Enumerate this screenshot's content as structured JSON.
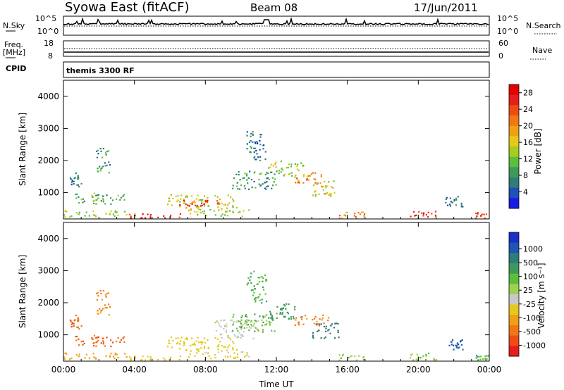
{
  "header": {
    "site": "Syowa East (fitACF)",
    "beam": "Beam 08",
    "date": "17/Jun/2011"
  },
  "strips": {
    "nsky": {
      "label": "N.Sky",
      "ticks": [
        "10^5",
        "10^0"
      ]
    },
    "nsearch": {
      "label": "N.Search",
      "ticks": [
        "10^5",
        "10^0"
      ]
    },
    "freq": {
      "label_line1": "Freq.",
      "label_line2": "[MHz]",
      "ticks": [
        "18",
        "8"
      ]
    },
    "nave": {
      "label": "Nave",
      "ticks": [
        "60",
        "0"
      ]
    },
    "cpid": {
      "label": "CPID",
      "value": "themis 3300 RF"
    }
  },
  "chart_data": [
    {
      "type": "heatmap",
      "quantity": "Power",
      "xlabel": "",
      "ylabel": "Slant Range [km]",
      "x_ticks": [
        "00:00",
        "04:00",
        "08:00",
        "12:00",
        "16:00",
        "20:00",
        "00:00"
      ],
      "y_ticks": [
        "1000",
        "2000",
        "3000",
        "4000"
      ],
      "xlim_hours": [
        0,
        24
      ],
      "ylim_km": [
        180,
        4500
      ],
      "colorbar": {
        "label": "Power [dB]",
        "ticks": [
          "4",
          "8",
          "12",
          "16",
          "20",
          "24",
          "28"
        ],
        "range": [
          0,
          30
        ],
        "colors": [
          "#1a1ae6",
          "#1f4fb8",
          "#2f7d78",
          "#3e9a5a",
          "#5cbf3c",
          "#a8cc1e",
          "#e6c81a",
          "#f0a014",
          "#f07814",
          "#f04b14",
          "#e61e1e",
          "#e60000"
        ]
      },
      "regions": [
        {
          "t0": 0.2,
          "t1": 1.0,
          "r0": 1200,
          "r1": 1700,
          "value": 6
        },
        {
          "t0": 0.5,
          "t1": 3.5,
          "r0": 650,
          "r1": 1000,
          "value": 10
        },
        {
          "t0": 1.8,
          "t1": 2.6,
          "r0": 1600,
          "r1": 2400,
          "value": 8
        },
        {
          "t0": 0.0,
          "t1": 4.0,
          "r0": 250,
          "r1": 450,
          "value": 14
        },
        {
          "t0": 3.6,
          "t1": 6.8,
          "r0": 200,
          "r1": 380,
          "value": 26
        },
        {
          "t0": 5.8,
          "t1": 9.8,
          "r0": 500,
          "r1": 950,
          "value": 16
        },
        {
          "t0": 6.2,
          "t1": 8.8,
          "r0": 600,
          "r1": 780,
          "value": 26
        },
        {
          "t0": 7.0,
          "t1": 10.5,
          "r0": 280,
          "r1": 500,
          "value": 14
        },
        {
          "t0": 9.5,
          "t1": 12.0,
          "r0": 1100,
          "r1": 1700,
          "value": 8
        },
        {
          "t0": 10.3,
          "t1": 11.4,
          "r0": 2000,
          "r1": 3000,
          "value": 6
        },
        {
          "t0": 11.5,
          "t1": 13.5,
          "r0": 1500,
          "r1": 2000,
          "value": 14
        },
        {
          "t0": 13.0,
          "t1": 15.0,
          "r0": 1300,
          "r1": 1650,
          "value": 20
        },
        {
          "t0": 14.0,
          "t1": 15.5,
          "r0": 900,
          "r1": 1400,
          "value": 16
        },
        {
          "t0": 15.5,
          "t1": 17.0,
          "r0": 180,
          "r1": 420,
          "value": 20
        },
        {
          "t0": 19.5,
          "t1": 21.0,
          "r0": 180,
          "r1": 450,
          "value": 26
        },
        {
          "t0": 23.2,
          "t1": 24.0,
          "r0": 180,
          "r1": 400,
          "value": 26
        },
        {
          "t0": 21.5,
          "t1": 22.5,
          "r0": 550,
          "r1": 900,
          "value": 6
        }
      ]
    },
    {
      "type": "heatmap",
      "quantity": "Velocity",
      "xlabel": "Time UT",
      "ylabel": "Slant Range [km]",
      "x_ticks": [
        "00:00",
        "04:00",
        "08:00",
        "12:00",
        "16:00",
        "20:00",
        "00:00"
      ],
      "y_ticks": [
        "1000",
        "2000",
        "3000",
        "4000"
      ],
      "xlim_hours": [
        0,
        24
      ],
      "ylim_km": [
        180,
        4500
      ],
      "colorbar": {
        "label": "Velocity [m s⁻¹]",
        "ticks": [
          "1000",
          "500",
          "100",
          "25",
          "-25",
          "-100",
          "-500",
          "-1000"
        ],
        "colors": [
          "#1a2fc8",
          "#1f55b4",
          "#2f7d78",
          "#3e9a5a",
          "#5cbf3c",
          "#a0d050",
          "#c8c8c8",
          "#e6c81a",
          "#f0a014",
          "#f07814",
          "#f04b14",
          "#e61e1e"
        ]
      },
      "regions": [
        {
          "t0": 0.2,
          "t1": 1.0,
          "r0": 1200,
          "r1": 1700,
          "value": -500
        },
        {
          "t0": 0.5,
          "t1": 3.5,
          "r0": 650,
          "r1": 1000,
          "value": -500
        },
        {
          "t0": 1.8,
          "t1": 2.6,
          "r0": 1600,
          "r1": 2400,
          "value": -300
        },
        {
          "t0": 0.0,
          "t1": 4.0,
          "r0": 250,
          "r1": 450,
          "value": -150
        },
        {
          "t0": 3.6,
          "t1": 6.8,
          "r0": 200,
          "r1": 380,
          "value": -60
        },
        {
          "t0": 5.8,
          "t1": 9.8,
          "r0": 500,
          "r1": 950,
          "value": -60
        },
        {
          "t0": 8.5,
          "t1": 11.0,
          "r0": 900,
          "r1": 1500,
          "value": 0
        },
        {
          "t0": 7.0,
          "t1": 10.5,
          "r0": 280,
          "r1": 500,
          "value": -40
        },
        {
          "t0": 9.5,
          "t1": 12.0,
          "r0": 1100,
          "r1": 1700,
          "value": 80
        },
        {
          "t0": 10.3,
          "t1": 11.4,
          "r0": 2000,
          "r1": 3000,
          "value": 100
        },
        {
          "t0": 11.5,
          "t1": 13.5,
          "r0": 1500,
          "r1": 2000,
          "value": 150
        },
        {
          "t0": 13.0,
          "t1": 15.0,
          "r0": 1300,
          "r1": 1650,
          "value": -300
        },
        {
          "t0": 14.0,
          "t1": 15.5,
          "r0": 900,
          "r1": 1400,
          "value": 400
        },
        {
          "t0": 15.5,
          "t1": 17.0,
          "r0": 180,
          "r1": 420,
          "value": 60
        },
        {
          "t0": 19.5,
          "t1": 21.0,
          "r0": 180,
          "r1": 450,
          "value": 50
        },
        {
          "t0": 23.2,
          "t1": 24.0,
          "r0": 180,
          "r1": 400,
          "value": 80
        },
        {
          "t0": 21.5,
          "t1": 22.5,
          "r0": 550,
          "r1": 900,
          "value": 700
        }
      ]
    }
  ]
}
